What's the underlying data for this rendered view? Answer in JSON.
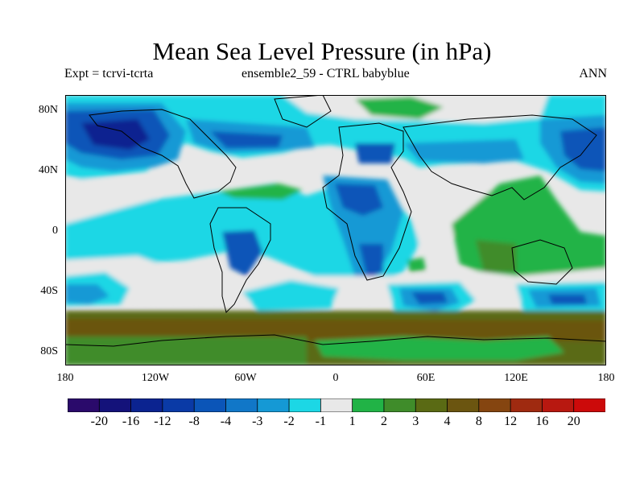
{
  "title": "Mean Sea Level Pressure (in hPa)",
  "subtitle_left": "Expt = tcrvi-tcrta",
  "subtitle_center": "ensemble2_59 - CTRL babyblue",
  "subtitle_right": "ANN",
  "lat_labels": [
    "80N",
    "40N",
    "0",
    "40S",
    "80S"
  ],
  "lon_labels": [
    "180",
    "120W",
    "60W",
    "0",
    "60E",
    "120E",
    "180"
  ],
  "colorbar": {
    "colors": [
      "#2a0a6b",
      "#14127a",
      "#0b2390",
      "#0a3aa6",
      "#0b55b8",
      "#1177c8",
      "#1599d5",
      "#1cd7e5",
      "#e8e8e8",
      "#21b346",
      "#3f8c2a",
      "#5a6a14",
      "#6b5510",
      "#854510",
      "#9f2a10",
      "#b81810",
      "#cc0a0a"
    ],
    "labels": [
      "-20",
      "-16",
      "-12",
      "-8",
      "-4",
      "-3",
      "-2",
      "-1",
      "1",
      "2",
      "3",
      "4",
      "8",
      "12",
      "16",
      "20"
    ]
  },
  "colors": {
    "neutral": "#e8e8e8",
    "neg_cyan": "#1cd7e5",
    "neg_light_blue": "#1599d5",
    "neg_mid_blue": "#0b55b8",
    "neg_dark_blue": "#0b2390",
    "pos_green": "#21b346",
    "pos_dark_green": "#3f8c2a",
    "pos_olive": "#5a6a14",
    "pos_brown": "#6b5510",
    "coastline": "#000000"
  }
}
